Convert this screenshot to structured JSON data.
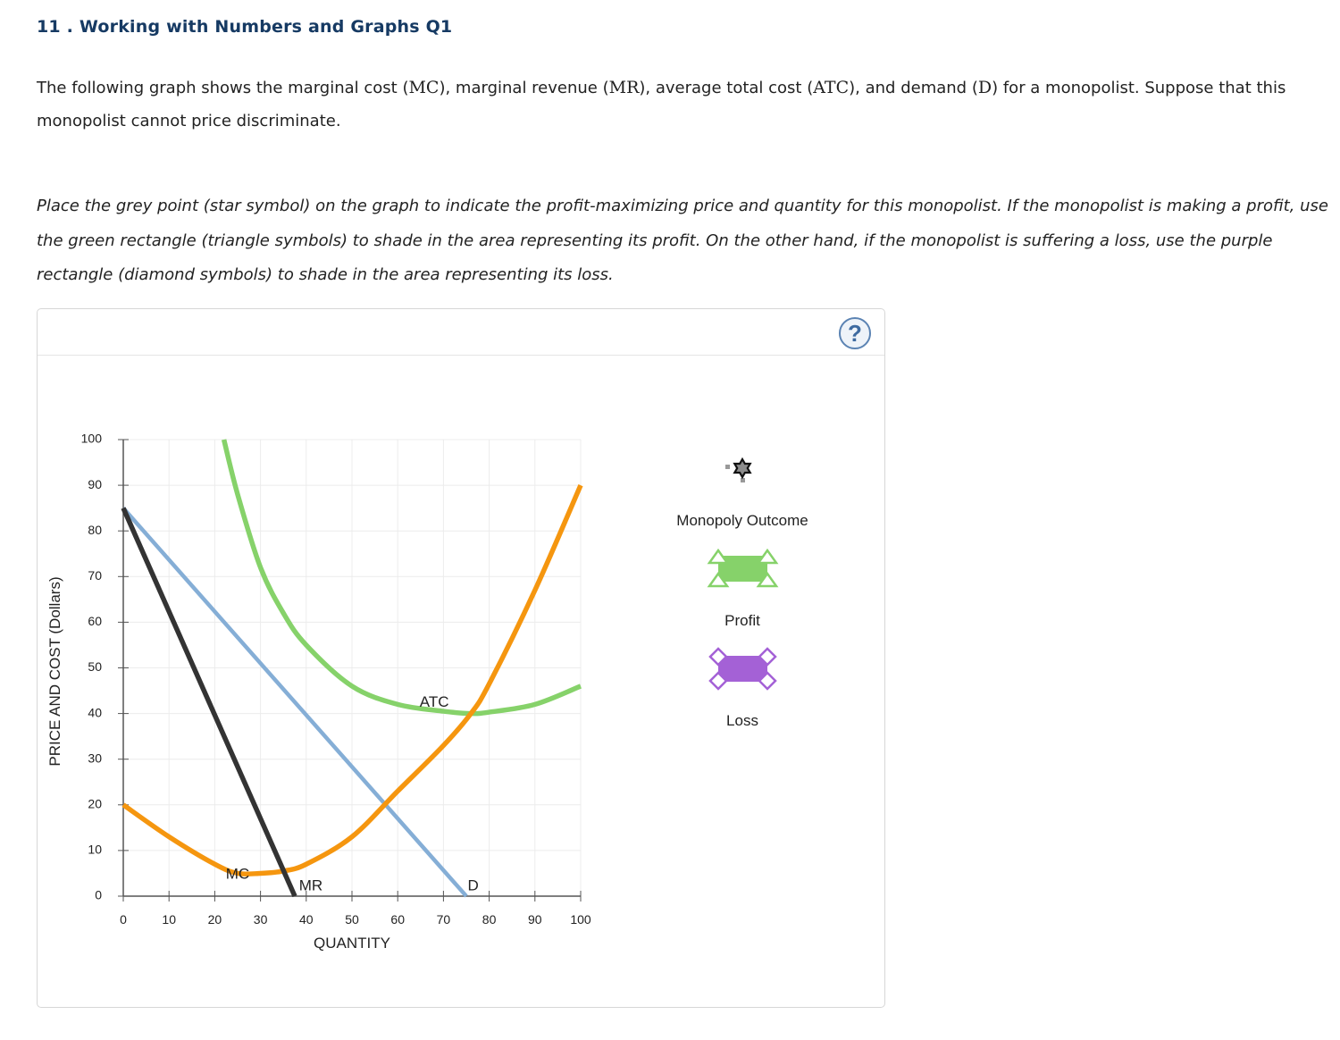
{
  "title": "11 . Working with Numbers and Graphs Q1",
  "intro": {
    "p1": "The following graph shows the marginal cost (",
    "mc": "MC",
    "p2": "), marginal revenue (",
    "mr": "MR",
    "p3": "), average total cost (",
    "atc": "ATC",
    "p4": "), and demand (",
    "d": "D",
    "p5": ") for a monopolist. Suppose that this monopolist cannot price discriminate."
  },
  "instructions": "Place the grey point (star symbol) on the graph to indicate the profit-maximizing price and quantity for this monopolist. If the monopolist is making a profit, use the green rectangle (triangle symbols) to shade in the area representing its profit. On the other hand, if the monopolist is suffering a loss, use the purple rectangle (diamond symbols) to shade in the area representing its loss.",
  "help_label": "?",
  "legend": {
    "monopoly_outcome": "Monopoly Outcome",
    "profit": "Profit",
    "loss": "Loss"
  },
  "colors": {
    "mc": "#f5960f",
    "atc": "#86d26a",
    "demand": "#85aed6",
    "mr": "#333333",
    "profit": "#86d26a",
    "loss": "#a461d6",
    "title": "#163a63"
  },
  "chart_data": {
    "type": "line",
    "xlabel": "QUANTITY",
    "ylabel": "PRICE AND COST (Dollars)",
    "xlim": [
      0,
      100
    ],
    "ylim": [
      0,
      100
    ],
    "xticks": [
      0,
      10,
      20,
      30,
      40,
      50,
      60,
      70,
      80,
      90,
      100
    ],
    "yticks": [
      0,
      10,
      20,
      30,
      40,
      50,
      60,
      70,
      80,
      90,
      100
    ],
    "grid": true,
    "series": [
      {
        "name": "MC",
        "label": "MC",
        "x": [
          0,
          10,
          20,
          25,
          30,
          35,
          40,
          50,
          60,
          70,
          76,
          80,
          90,
          100
        ],
        "y": [
          20,
          13,
          7,
          5,
          5,
          5.5,
          7,
          13,
          23,
          33,
          40,
          46.5,
          67,
          90
        ]
      },
      {
        "name": "ATC",
        "label": "ATC",
        "x": [
          22,
          25,
          30,
          35,
          40,
          50,
          60,
          70,
          76,
          80,
          90,
          100
        ],
        "y": [
          100,
          88,
          72,
          62,
          55,
          46,
          42,
          40.5,
          40,
          40.3,
          42,
          46
        ]
      },
      {
        "name": "D",
        "label": "D",
        "x": [
          0,
          75
        ],
        "y": [
          85,
          0
        ]
      },
      {
        "name": "MR",
        "label": "MR",
        "x": [
          0,
          37.5
        ],
        "y": [
          85,
          0
        ]
      }
    ]
  }
}
